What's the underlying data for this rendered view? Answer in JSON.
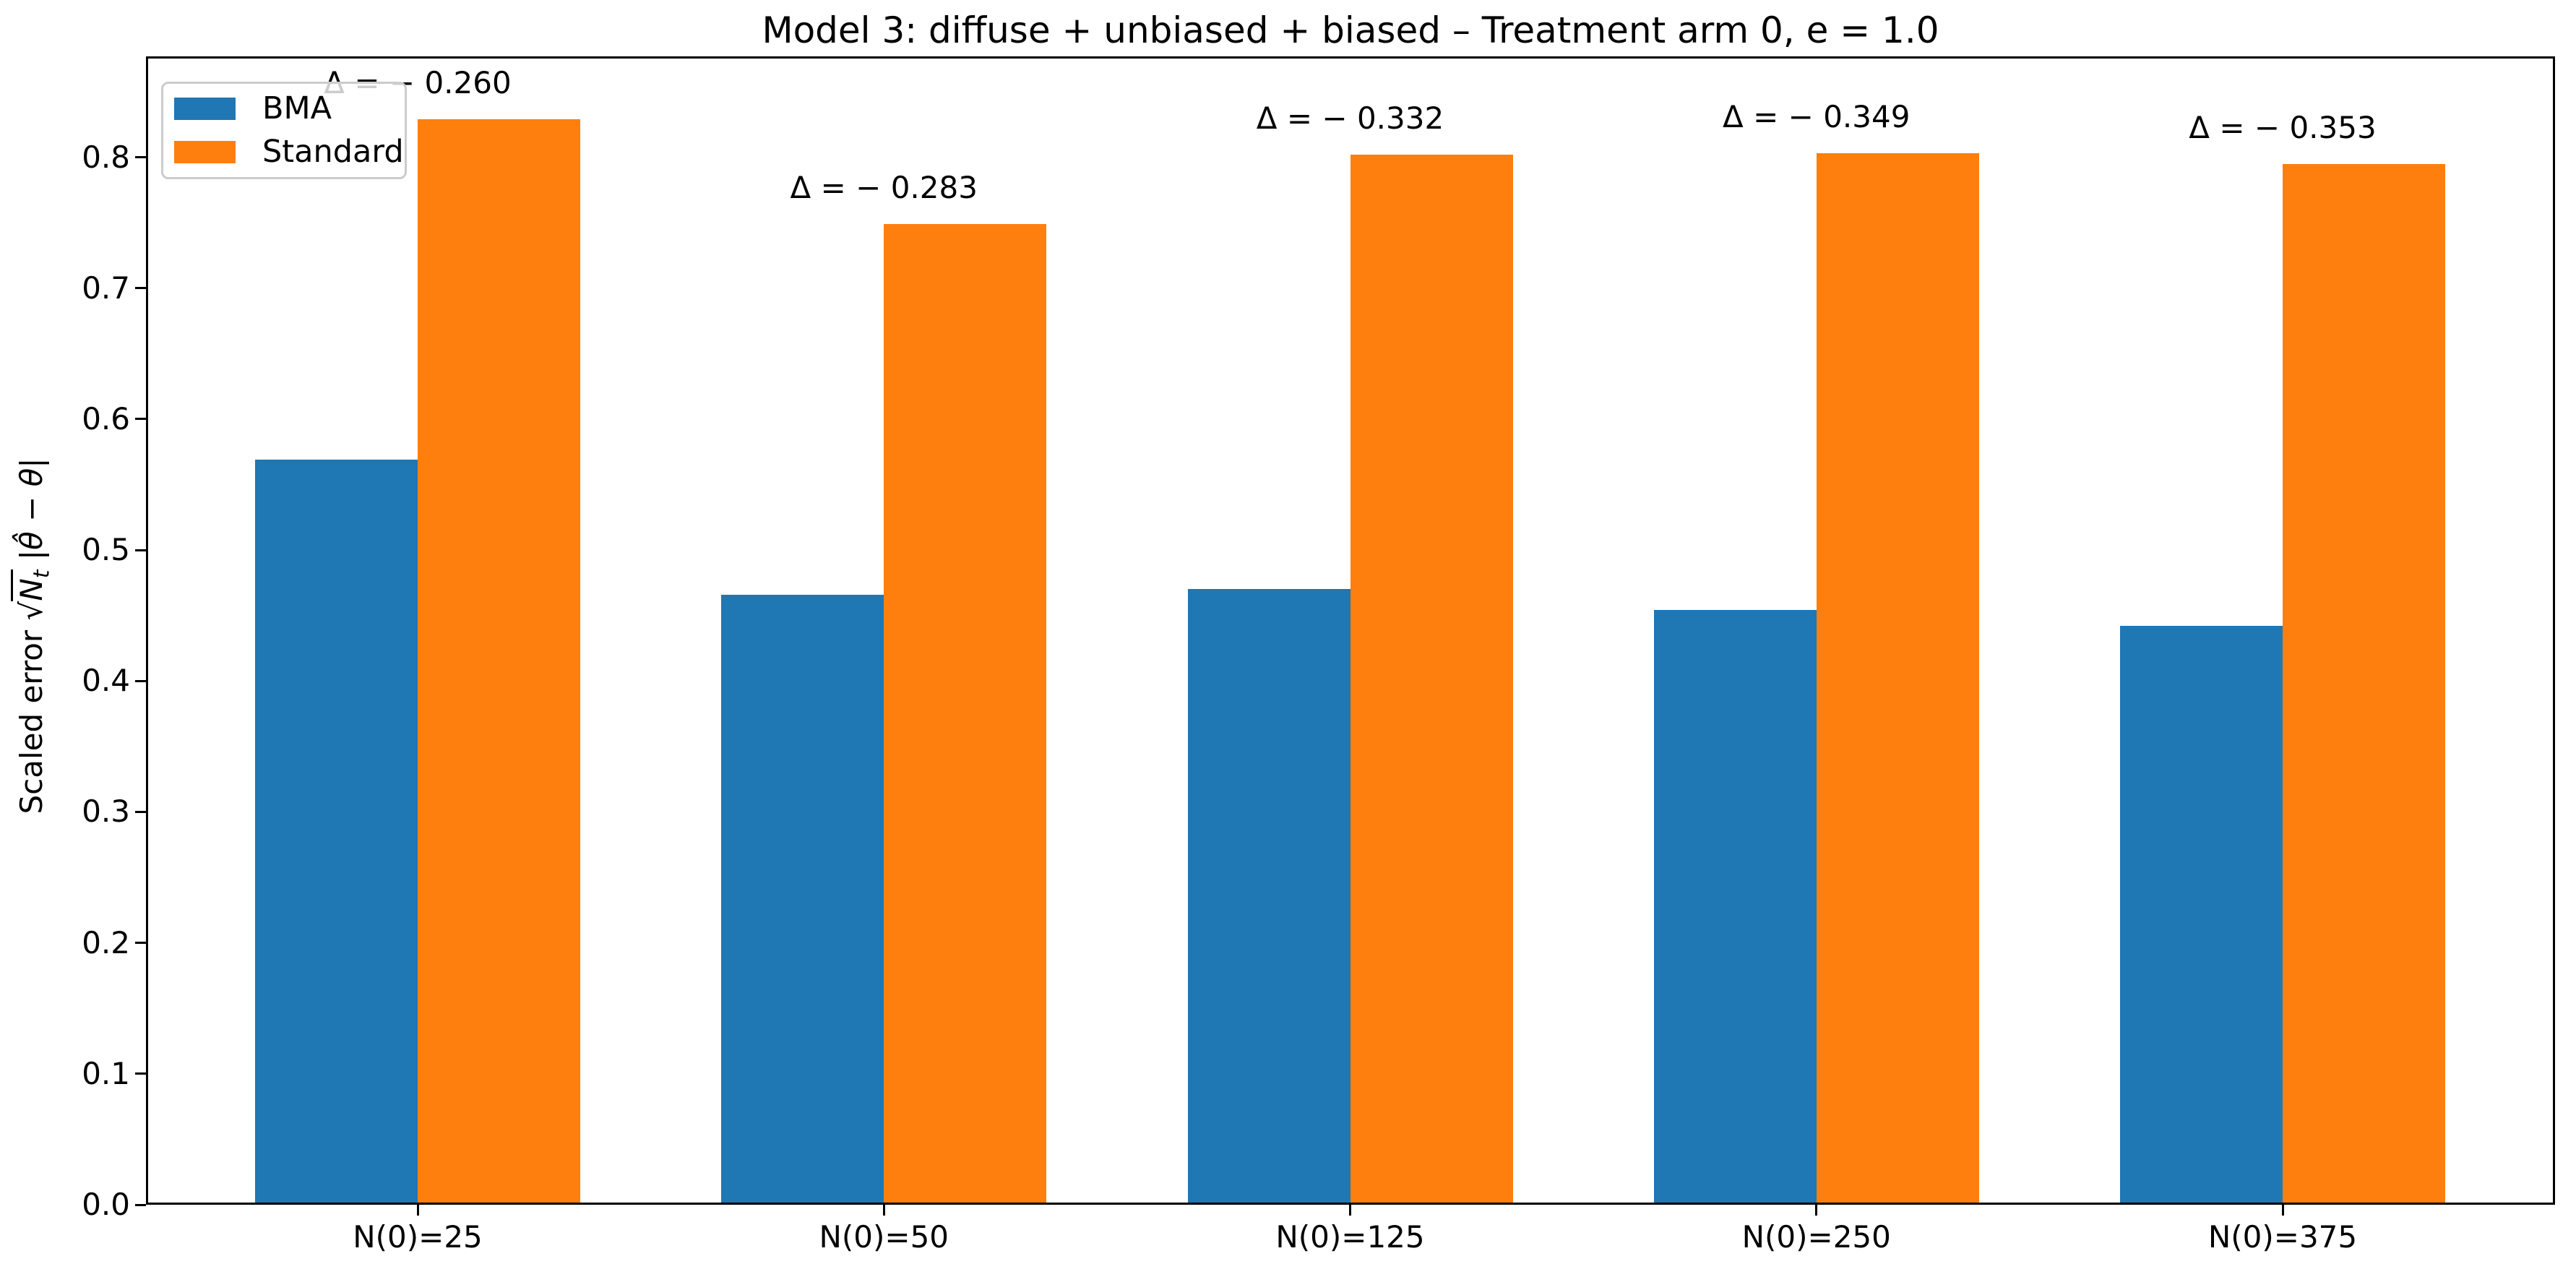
{
  "chart_data": {
    "type": "bar",
    "title": "Model 3: diffuse + unbiased + biased – Treatment arm 0, e = 1.0",
    "ylabel": "Scaled error √(N_t) |θ̂ − θ|",
    "ylabel_parts": {
      "prefix": "Scaled error",
      "radical": "√",
      "radicand": "N",
      "radicand_sub": "t",
      "rest": "|θ̂ − θ|"
    },
    "categories": [
      "N(0)=25",
      "N(0)=50",
      "N(0)=125",
      "N(0)=250",
      "N(0)=375"
    ],
    "series": [
      {
        "name": "BMA",
        "color": "#1f77b4",
        "values": [
          0.569,
          0.466,
          0.47,
          0.454,
          0.442
        ]
      },
      {
        "name": "Standard",
        "color": "#ff7f0e",
        "values": [
          0.829,
          0.749,
          0.802,
          0.803,
          0.795
        ]
      }
    ],
    "annotations": [
      "Δ = − 0.260",
      "Δ = − 0.283",
      "Δ = − 0.332",
      "Δ = − 0.349",
      "Δ = − 0.353"
    ],
    "deltas": [
      -0.26,
      -0.283,
      -0.332,
      -0.349,
      -0.353
    ],
    "yticks": [
      0.0,
      0.1,
      0.2,
      0.3,
      0.4,
      0.5,
      0.6,
      0.7,
      0.8
    ],
    "ytick_labels": [
      "0.0",
      "0.1",
      "0.2",
      "0.3",
      "0.4",
      "0.5",
      "0.6",
      "0.7",
      "0.8"
    ],
    "ylim": [
      0,
      0.877
    ],
    "grid": false,
    "legend_position": "upper left"
  }
}
